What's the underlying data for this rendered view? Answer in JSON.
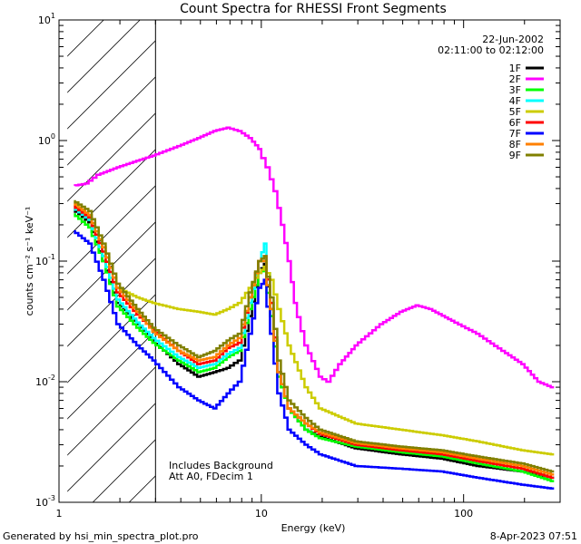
{
  "chart_data": {
    "type": "line",
    "title": "Count Spectra for RHESSI Front Segments",
    "xlabel": "Energy (keV)",
    "ylabel": "counts cm⁻² s⁻¹ keV⁻¹",
    "x_scale": "log",
    "y_scale": "log",
    "xlim": [
      1,
      300
    ],
    "ylim": [
      0.001,
      10
    ],
    "x_ticklabels": [
      {
        "value": 1,
        "label": "1"
      },
      {
        "value": 10,
        "label": "10"
      },
      {
        "value": 100,
        "label": "100"
      }
    ],
    "y_ticklabels": [
      {
        "value": 10,
        "base": "10",
        "exp": "1"
      },
      {
        "value": 1,
        "base": "10",
        "exp": "0"
      },
      {
        "value": 0.1,
        "base": "10",
        "exp": "-1"
      },
      {
        "value": 0.01,
        "base": "10",
        "exp": "-2"
      },
      {
        "value": 0.001,
        "base": "10",
        "exp": "-3"
      }
    ],
    "hatched_region_x": [
      1.1,
      3.0
    ],
    "date": "22-Jun-2002",
    "time_range": "02:11:00 to 02:12:00",
    "annotations": [
      "Includes Background",
      "Att A0, FDecim 1"
    ],
    "legend_position": "top-right",
    "series": [
      {
        "name": "1F",
        "color": "#000000",
        "points": [
          [
            1.2,
            0.27
          ],
          [
            1.45,
            0.21
          ],
          [
            1.7,
            0.1
          ],
          [
            2.0,
            0.045
          ],
          [
            2.5,
            0.03
          ],
          [
            3.0,
            0.022
          ],
          [
            4,
            0.014
          ],
          [
            5,
            0.011
          ],
          [
            6,
            0.012
          ],
          [
            7,
            0.013
          ],
          [
            8,
            0.015
          ],
          [
            9,
            0.035
          ],
          [
            10,
            0.08
          ],
          [
            10.6,
            0.095
          ],
          [
            11.5,
            0.04
          ],
          [
            12.5,
            0.012
          ],
          [
            14,
            0.006
          ],
          [
            17,
            0.004
          ],
          [
            20,
            0.0035
          ],
          [
            30,
            0.0028
          ],
          [
            50,
            0.0025
          ],
          [
            80,
            0.0023
          ],
          [
            120,
            0.002
          ],
          [
            200,
            0.0018
          ],
          [
            280,
            0.0016
          ]
        ]
      },
      {
        "name": "2F",
        "color": "#ff00ff",
        "points": [
          [
            1.2,
            0.42
          ],
          [
            1.4,
            0.44
          ],
          [
            1.6,
            0.52
          ],
          [
            2.0,
            0.6
          ],
          [
            2.5,
            0.68
          ],
          [
            3.0,
            0.75
          ],
          [
            4,
            0.9
          ],
          [
            5,
            1.05
          ],
          [
            6,
            1.2
          ],
          [
            7,
            1.28
          ],
          [
            8,
            1.2
          ],
          [
            9,
            1.05
          ],
          [
            10,
            0.85
          ],
          [
            11,
            0.6
          ],
          [
            12,
            0.38
          ],
          [
            13,
            0.2
          ],
          [
            14,
            0.1
          ],
          [
            15,
            0.045
          ],
          [
            17,
            0.02
          ],
          [
            20,
            0.011
          ],
          [
            22,
            0.01
          ],
          [
            25,
            0.014
          ],
          [
            30,
            0.02
          ],
          [
            40,
            0.03
          ],
          [
            50,
            0.038
          ],
          [
            60,
            0.043
          ],
          [
            70,
            0.04
          ],
          [
            90,
            0.032
          ],
          [
            120,
            0.025
          ],
          [
            160,
            0.018
          ],
          [
            200,
            0.014
          ],
          [
            240,
            0.01
          ],
          [
            280,
            0.009
          ]
        ]
      },
      {
        "name": "3F",
        "color": "#00ff00",
        "points": [
          [
            1.2,
            0.25
          ],
          [
            1.45,
            0.19
          ],
          [
            1.7,
            0.1
          ],
          [
            2.0,
            0.042
          ],
          [
            2.5,
            0.028
          ],
          [
            3.0,
            0.021
          ],
          [
            4,
            0.015
          ],
          [
            5,
            0.012
          ],
          [
            6,
            0.013
          ],
          [
            7,
            0.016
          ],
          [
            8,
            0.018
          ],
          [
            9,
            0.04
          ],
          [
            10,
            0.08
          ],
          [
            10.6,
            0.085
          ],
          [
            11.5,
            0.035
          ],
          [
            12.5,
            0.011
          ],
          [
            14,
            0.006
          ],
          [
            17,
            0.004
          ],
          [
            20,
            0.0034
          ],
          [
            30,
            0.0029
          ],
          [
            50,
            0.0026
          ],
          [
            80,
            0.0024
          ],
          [
            120,
            0.0021
          ],
          [
            200,
            0.0018
          ],
          [
            280,
            0.0015
          ]
        ]
      },
      {
        "name": "4F",
        "color": "#00ffff",
        "points": [
          [
            1.2,
            0.28
          ],
          [
            1.45,
            0.22
          ],
          [
            1.7,
            0.11
          ],
          [
            2.0,
            0.048
          ],
          [
            2.5,
            0.031
          ],
          [
            3.0,
            0.023
          ],
          [
            4,
            0.016
          ],
          [
            5,
            0.013
          ],
          [
            6,
            0.014
          ],
          [
            7,
            0.017
          ],
          [
            8,
            0.019
          ],
          [
            9,
            0.045
          ],
          [
            10,
            0.1
          ],
          [
            10.6,
            0.14
          ],
          [
            11.5,
            0.045
          ],
          [
            12.5,
            0.012
          ],
          [
            14,
            0.006
          ],
          [
            17,
            0.0045
          ],
          [
            20,
            0.0038
          ],
          [
            30,
            0.003
          ],
          [
            50,
            0.0027
          ],
          [
            80,
            0.0025
          ],
          [
            120,
            0.0022
          ],
          [
            200,
            0.0019
          ],
          [
            280,
            0.0016
          ]
        ]
      },
      {
        "name": "5F",
        "color": "#cccc00",
        "points": [
          [
            1.2,
            0.3
          ],
          [
            1.45,
            0.24
          ],
          [
            1.7,
            0.13
          ],
          [
            2.0,
            0.06
          ],
          [
            2.5,
            0.05
          ],
          [
            3.0,
            0.045
          ],
          [
            4,
            0.04
          ],
          [
            5,
            0.038
          ],
          [
            6,
            0.036
          ],
          [
            7,
            0.04
          ],
          [
            8,
            0.045
          ],
          [
            9,
            0.06
          ],
          [
            10,
            0.08
          ],
          [
            10.6,
            0.09
          ],
          [
            11.5,
            0.07
          ],
          [
            12.5,
            0.04
          ],
          [
            14,
            0.02
          ],
          [
            17,
            0.009
          ],
          [
            20,
            0.006
          ],
          [
            30,
            0.0045
          ],
          [
            50,
            0.004
          ],
          [
            80,
            0.0036
          ],
          [
            120,
            0.0032
          ],
          [
            200,
            0.0027
          ],
          [
            280,
            0.0025
          ]
        ]
      },
      {
        "name": "6F",
        "color": "#ff0000",
        "points": [
          [
            1.2,
            0.29
          ],
          [
            1.45,
            0.23
          ],
          [
            1.7,
            0.12
          ],
          [
            2.0,
            0.055
          ],
          [
            2.5,
            0.036
          ],
          [
            3.0,
            0.027
          ],
          [
            4,
            0.018
          ],
          [
            5,
            0.014
          ],
          [
            6,
            0.015
          ],
          [
            7,
            0.019
          ],
          [
            8,
            0.021
          ],
          [
            9,
            0.05
          ],
          [
            10,
            0.1
          ],
          [
            10.6,
            0.11
          ],
          [
            11.5,
            0.045
          ],
          [
            12.5,
            0.012
          ],
          [
            14,
            0.006
          ],
          [
            17,
            0.0045
          ],
          [
            20,
            0.0037
          ],
          [
            30,
            0.003
          ],
          [
            50,
            0.0027
          ],
          [
            80,
            0.0025
          ],
          [
            120,
            0.0022
          ],
          [
            200,
            0.0019
          ],
          [
            280,
            0.0016
          ]
        ]
      },
      {
        "name": "7F",
        "color": "#0000ff",
        "points": [
          [
            1.2,
            0.18
          ],
          [
            1.45,
            0.14
          ],
          [
            1.7,
            0.07
          ],
          [
            2.0,
            0.03
          ],
          [
            2.5,
            0.02
          ],
          [
            3.0,
            0.015
          ],
          [
            4,
            0.009
          ],
          [
            5,
            0.007
          ],
          [
            6,
            0.006
          ],
          [
            7,
            0.008
          ],
          [
            8,
            0.01
          ],
          [
            9,
            0.025
          ],
          [
            10,
            0.06
          ],
          [
            10.6,
            0.07
          ],
          [
            11.5,
            0.025
          ],
          [
            12.5,
            0.008
          ],
          [
            14,
            0.004
          ],
          [
            17,
            0.003
          ],
          [
            20,
            0.0025
          ],
          [
            30,
            0.002
          ],
          [
            50,
            0.0019
          ],
          [
            80,
            0.0018
          ],
          [
            120,
            0.0016
          ],
          [
            200,
            0.0014
          ],
          [
            280,
            0.0013
          ]
        ]
      },
      {
        "name": "8F",
        "color": "#ff8000",
        "points": [
          [
            1.2,
            0.31
          ],
          [
            1.45,
            0.24
          ],
          [
            1.7,
            0.13
          ],
          [
            2.0,
            0.06
          ],
          [
            2.5,
            0.038
          ],
          [
            3.0,
            0.026
          ],
          [
            4,
            0.018
          ],
          [
            5,
            0.015
          ],
          [
            6,
            0.016
          ],
          [
            7,
            0.02
          ],
          [
            8,
            0.023
          ],
          [
            9,
            0.05
          ],
          [
            10,
            0.1
          ],
          [
            10.6,
            0.1
          ],
          [
            11.5,
            0.04
          ],
          [
            12.5,
            0.012
          ],
          [
            14,
            0.006
          ],
          [
            17,
            0.0045
          ],
          [
            20,
            0.0038
          ],
          [
            30,
            0.0031
          ],
          [
            50,
            0.0028
          ],
          [
            80,
            0.0026
          ],
          [
            120,
            0.0023
          ],
          [
            200,
            0.002
          ],
          [
            280,
            0.0017
          ]
        ]
      },
      {
        "name": "9F",
        "color": "#808000",
        "points": [
          [
            1.2,
            0.32
          ],
          [
            1.45,
            0.26
          ],
          [
            1.7,
            0.14
          ],
          [
            2.0,
            0.065
          ],
          [
            2.5,
            0.04
          ],
          [
            3.0,
            0.028
          ],
          [
            4,
            0.02
          ],
          [
            5,
            0.016
          ],
          [
            6,
            0.018
          ],
          [
            7,
            0.022
          ],
          [
            8,
            0.025
          ],
          [
            9,
            0.055
          ],
          [
            10,
            0.1
          ],
          [
            10.6,
            0.11
          ],
          [
            11.5,
            0.05
          ],
          [
            12.5,
            0.015
          ],
          [
            14,
            0.007
          ],
          [
            17,
            0.005
          ],
          [
            20,
            0.004
          ],
          [
            30,
            0.0032
          ],
          [
            50,
            0.0029
          ],
          [
            80,
            0.0027
          ],
          [
            120,
            0.0024
          ],
          [
            200,
            0.0021
          ],
          [
            280,
            0.0018
          ]
        ]
      }
    ]
  },
  "footer": {
    "generated_by": "Generated by hsi_min_spectra_plot.pro",
    "timestamp": "8-Apr-2023 07:51"
  }
}
